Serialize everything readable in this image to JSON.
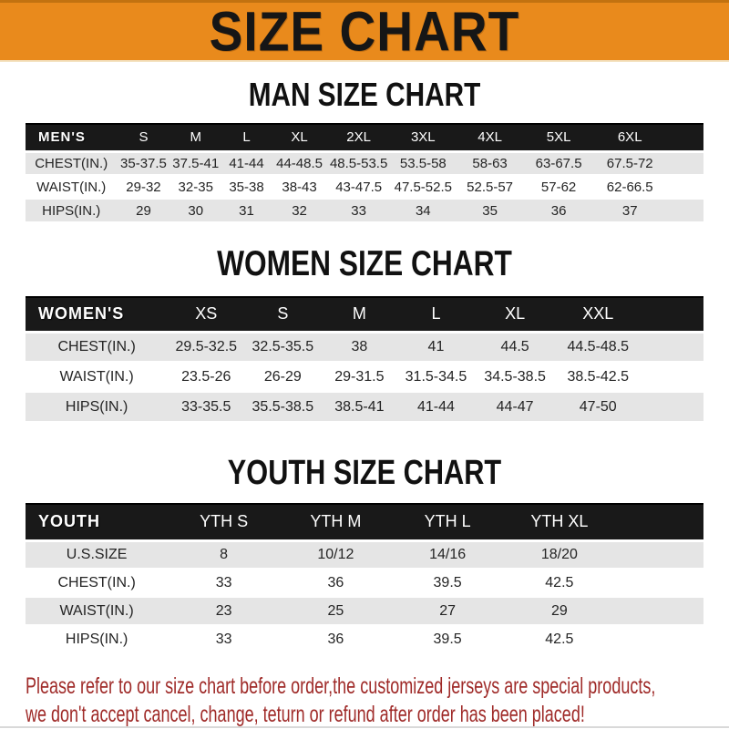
{
  "banner": {
    "title": "SIZE CHART"
  },
  "colors": {
    "accent_orange": "#E98A1C",
    "bar_black": "#191919",
    "stripe_gray": "#E5E5E5",
    "warning_red": "#9F2A28"
  },
  "sections": [
    {
      "heading": "MAN SIZE CHART",
      "table": {
        "label": "MEN'S",
        "sizes": [
          "S",
          "M",
          "L",
          "XL",
          "2XL",
          "3XL",
          "4XL",
          "5XL",
          "6XL"
        ],
        "rows": [
          {
            "label": "CHEST(IN.)",
            "values": [
              "35-37.5",
              "37.5-41",
              "41-44",
              "44-48.5",
              "48.5-53.5",
              "53.5-58",
              "58-63",
              "63-67.5",
              "67.5-72"
            ]
          },
          {
            "label": "WAIST(IN.)",
            "values": [
              "29-32",
              "32-35",
              "35-38",
              "38-43",
              "43-47.5",
              "47.5-52.5",
              "52.5-57",
              "57-62",
              "62-66.5"
            ]
          },
          {
            "label": "HIPS(IN.)",
            "values": [
              "29",
              "30",
              "31",
              "32",
              "33",
              "34",
              "35",
              "36",
              "37"
            ]
          }
        ]
      }
    },
    {
      "heading": "WOMEN SIZE CHART",
      "table": {
        "label": "WOMEN'S",
        "sizes": [
          "XS",
          "S",
          "M",
          "L",
          "XL",
          "XXL"
        ],
        "rows": [
          {
            "label": "CHEST(IN.)",
            "values": [
              "29.5-32.5",
              "32.5-35.5",
              "38",
              "41",
              "44.5",
              "44.5-48.5"
            ]
          },
          {
            "label": "WAIST(IN.)",
            "values": [
              "23.5-26",
              "26-29",
              "29-31.5",
              "31.5-34.5",
              "34.5-38.5",
              "38.5-42.5"
            ]
          },
          {
            "label": "HIPS(IN.)",
            "values": [
              "33-35.5",
              "35.5-38.5",
              "38.5-41",
              "41-44",
              "44-47",
              "47-50"
            ]
          }
        ]
      }
    },
    {
      "heading": "YOUTH SIZE CHART",
      "table": {
        "label": "YOUTH",
        "sizes": [
          "YTH S",
          "YTH M",
          "YTH L",
          "YTH XL"
        ],
        "rows": [
          {
            "label": "U.S.SIZE",
            "values": [
              "8",
              "10/12",
              "14/16",
              "18/20"
            ]
          },
          {
            "label": "CHEST(IN.)",
            "values": [
              "33",
              "36",
              "39.5",
              "42.5"
            ]
          },
          {
            "label": "WAIST(IN.)",
            "values": [
              "23",
              "25",
              "27",
              "29"
            ]
          },
          {
            "label": "HIPS(IN.)",
            "values": [
              "33",
              "36",
              "39.5",
              "42.5"
            ]
          }
        ]
      }
    }
  ],
  "footer": {
    "line1": "Please refer to our size chart before order,the customized jerseys are special products,",
    "line2": "we don't accept cancel, change, teturn or refund after order has been placed!"
  }
}
